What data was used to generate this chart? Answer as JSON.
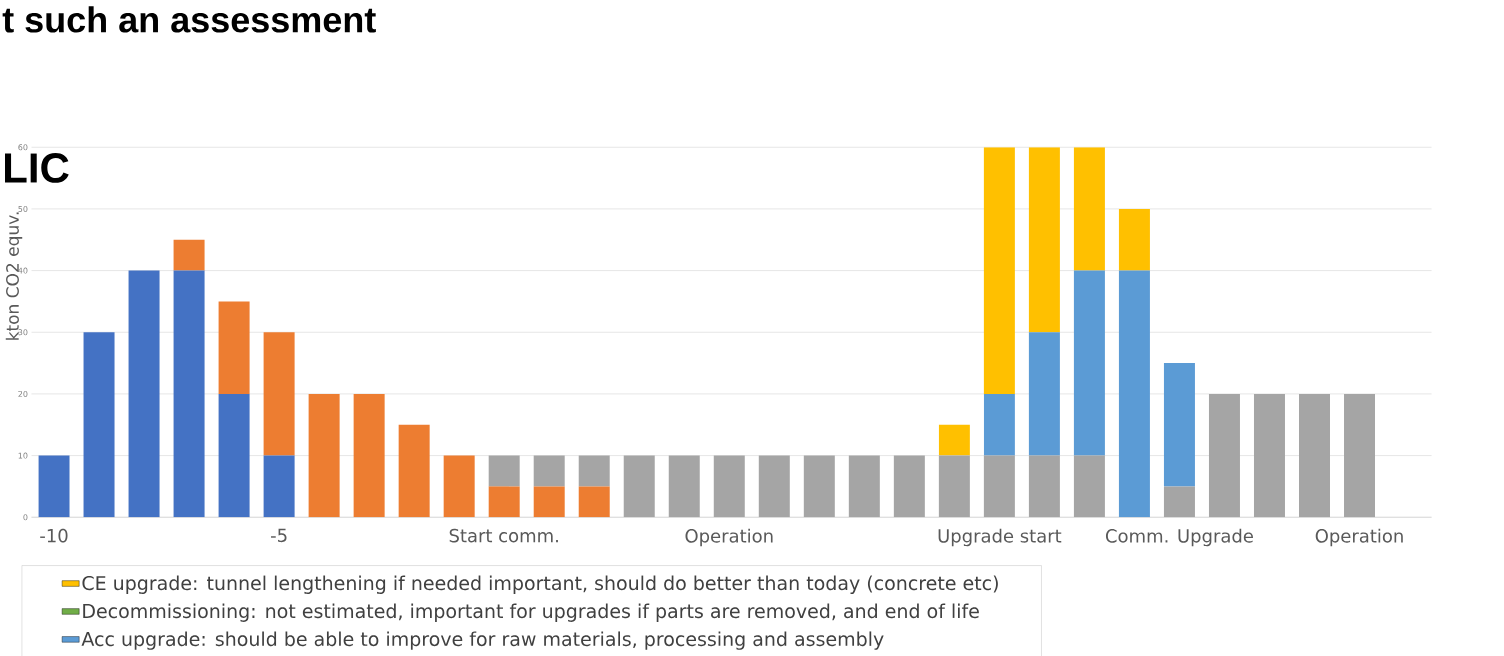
{
  "chart_data": {
    "type": "bar",
    "stacked": true,
    "ylabel": "kton CO2 equv.",
    "annotations": [
      "t such an assessment",
      "LIC"
    ],
    "categories": [
      "-10",
      null,
      null,
      null,
      null,
      "-5",
      null,
      null,
      null,
      null,
      "Start comm.",
      null,
      null,
      null,
      null,
      "Operation",
      null,
      null,
      null,
      null,
      null,
      "Upgrade start",
      null,
      null,
      null,
      "Comm. Upgrade",
      null,
      null,
      null,
      "Operation"
    ],
    "series": [
      {
        "color": "#4472c4",
        "values": [
          10,
          30,
          40,
          40,
          20,
          10,
          null,
          null,
          null,
          null,
          null,
          null,
          null,
          null,
          null,
          null,
          null,
          null,
          null,
          null,
          null,
          null,
          null,
          null,
          null,
          null,
          null,
          null,
          null,
          null
        ]
      },
      {
        "color": "#ed7d31",
        "values": [
          null,
          null,
          null,
          5,
          15,
          20,
          20,
          20,
          15,
          10,
          5,
          5,
          5,
          null,
          null,
          null,
          null,
          null,
          null,
          null,
          null,
          null,
          null,
          null,
          null,
          null,
          null,
          null,
          null,
          null
        ]
      },
      {
        "color": "#a5a5a5",
        "values": [
          null,
          null,
          null,
          null,
          null,
          null,
          null,
          null,
          null,
          null,
          5,
          5,
          5,
          10,
          10,
          10,
          10,
          10,
          10,
          10,
          10,
          10,
          10,
          10,
          null,
          5,
          20,
          20,
          20,
          20
        ]
      },
      {
        "name": "Acc upgrade: should be able to improve for raw materials, processing and assembly",
        "color": "#5b9bd5",
        "values": [
          null,
          null,
          null,
          null,
          null,
          null,
          null,
          null,
          null,
          null,
          null,
          null,
          null,
          null,
          null,
          null,
          null,
          null,
          null,
          null,
          null,
          10,
          20,
          30,
          40,
          20,
          null,
          null,
          null,
          null
        ]
      },
      {
        "name": "Decommissioning: not estimated, important for upgrades if parts are removed, and end of life",
        "color": "#70ad47",
        "values": [
          null,
          null,
          null,
          null,
          null,
          null,
          null,
          null,
          null,
          null,
          null,
          null,
          null,
          null,
          null,
          null,
          null,
          null,
          null,
          null,
          null,
          null,
          null,
          null,
          null,
          null,
          null,
          null,
          null,
          null
        ]
      },
      {
        "name": "CE upgrade: tunnel lengthening if needed important, should do better than today (concrete etc)",
        "color": "#ffc000",
        "values": [
          null,
          null,
          null,
          null,
          null,
          null,
          null,
          null,
          null,
          null,
          null,
          null,
          null,
          null,
          null,
          null,
          null,
          null,
          null,
          null,
          5,
          40,
          30,
          20,
          10,
          null,
          null,
          null,
          null,
          null
        ]
      }
    ],
    "ylim": [
      0,
      60
    ],
    "yticks": [
      0,
      10,
      20,
      30,
      40,
      50,
      60
    ],
    "grid": "y",
    "legend": "bottom"
  }
}
